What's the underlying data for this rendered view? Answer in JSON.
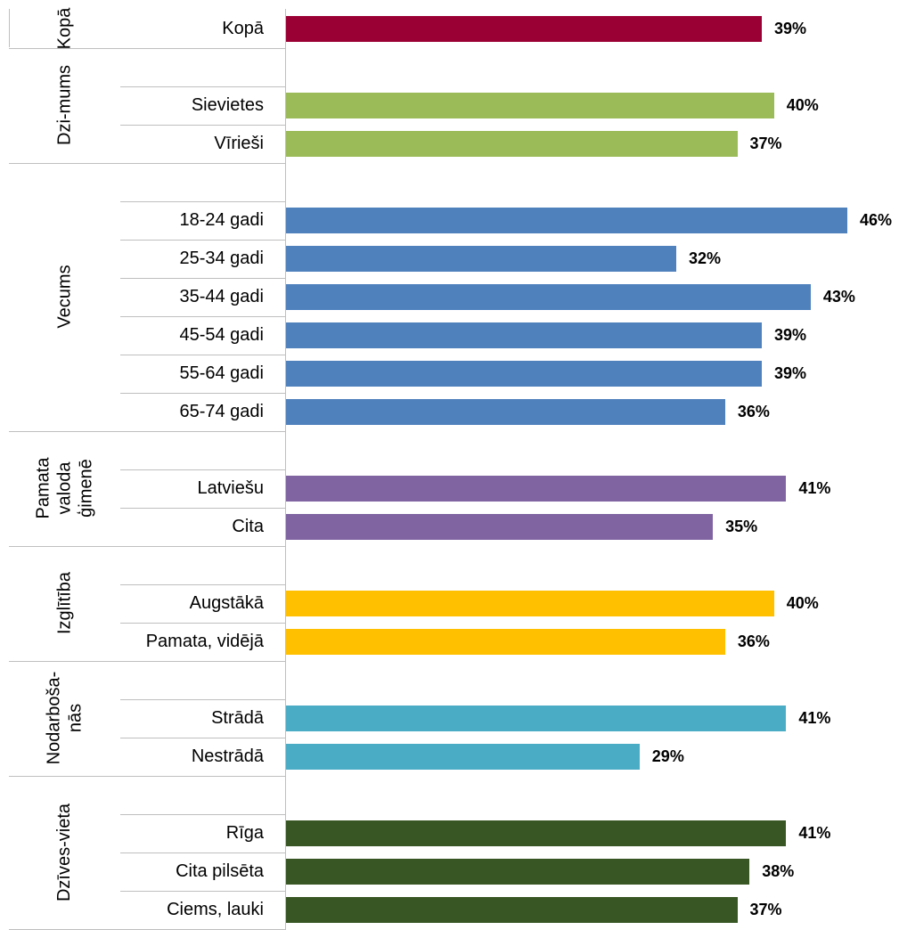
{
  "chart_data": {
    "type": "bar",
    "orientation": "horizontal",
    "xlim": [
      0,
      46
    ],
    "groups": [
      {
        "name": "Kopā",
        "color": "#9b0034",
        "categories": [
          "Kopā"
        ],
        "values": [
          39
        ],
        "value_labels": [
          "39%"
        ]
      },
      {
        "name": "Dzi-mums",
        "color": "#9bbb59",
        "categories": [
          null,
          "Sievietes",
          "Vīrieši"
        ],
        "values": [
          null,
          40,
          37
        ],
        "value_labels": [
          null,
          "40%",
          "37%"
        ]
      },
      {
        "name": "Vecums",
        "color": "#4f81bd",
        "categories": [
          null,
          "18-24 gadi",
          "25-34 gadi",
          "35-44 gadi",
          "45-54 gadi",
          "55-64 gadi",
          "65-74 gadi"
        ],
        "values": [
          null,
          46,
          32,
          43,
          39,
          39,
          36
        ],
        "value_labels": [
          null,
          "46%",
          "32%",
          "43%",
          "39%",
          "39%",
          "36%"
        ]
      },
      {
        "name": "Pamata valoda ģimenē",
        "color": "#8064a2",
        "categories": [
          null,
          "Latviešu",
          "Cita"
        ],
        "values": [
          null,
          41,
          35
        ],
        "value_labels": [
          null,
          "41%",
          "35%"
        ]
      },
      {
        "name": "Izglītība",
        "color": "#ffc000",
        "categories": [
          null,
          "Augstākā",
          "Pamata, vidējā"
        ],
        "values": [
          null,
          40,
          36
        ],
        "value_labels": [
          null,
          "40%",
          "36%"
        ]
      },
      {
        "name": "Nodarboša-nās",
        "color": "#4bacc6",
        "categories": [
          null,
          "Strādā",
          "Nestrādā"
        ],
        "values": [
          null,
          41,
          29
        ],
        "value_labels": [
          null,
          "41%",
          "29%"
        ]
      },
      {
        "name": "Dzīves-vieta",
        "color": "#375623",
        "categories": [
          null,
          "Rīga",
          "Cita pilsēta",
          "Ciems, lauki"
        ],
        "values": [
          null,
          41,
          38,
          37
        ],
        "value_labels": [
          null,
          "41%",
          "38%",
          "37%"
        ]
      }
    ]
  }
}
